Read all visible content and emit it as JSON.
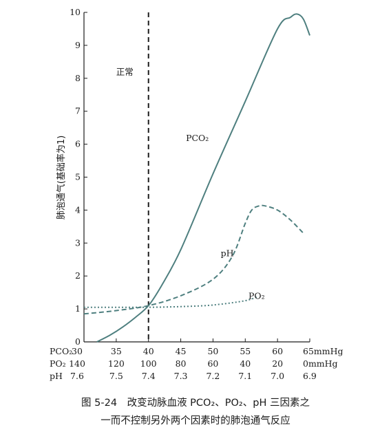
{
  "chart_data": {
    "type": "line",
    "ylabel": "肺泡通气(基础率为1)",
    "ylim": [
      0,
      10
    ],
    "y_ticks": [
      "0",
      "1",
      "2",
      "3",
      "4",
      "5",
      "6",
      "7",
      "8",
      "9",
      "10"
    ],
    "x_pco2_range": [
      30,
      65
    ],
    "x_rows": [
      {
        "label": "PCO₂",
        "ticks": [
          "30",
          "35",
          "40",
          "45",
          "50",
          "55",
          "60",
          "65mmHg"
        ]
      },
      {
        "label": "PO₂",
        "ticks": [
          "140",
          "120",
          "100",
          "80",
          "60",
          "40",
          "20",
          "0mmHg"
        ]
      },
      {
        "label": "pH",
        "ticks": [
          "7.6",
          "7.5",
          "7.4",
          "7.3",
          "7.2",
          "7.1",
          "7.0",
          "6.9"
        ]
      }
    ],
    "reference_line": {
      "x": 40,
      "label": "正常"
    },
    "series": [
      {
        "name": "PCO₂",
        "style": "solid",
        "color": "#4e7f7f",
        "x": [
          32,
          34,
          36,
          38,
          40,
          42,
          45,
          50,
          55,
          60,
          62,
          63,
          64,
          65
        ],
        "y": [
          0.0,
          0.2,
          0.45,
          0.75,
          1.1,
          1.7,
          2.8,
          5.1,
          7.3,
          9.5,
          9.85,
          9.95,
          9.8,
          9.3
        ]
      },
      {
        "name": "pH",
        "style": "dashed",
        "color": "#4e7f7f",
        "x": [
          30,
          35,
          40,
          45,
          50,
          53,
          55,
          56,
          57,
          58,
          60,
          62,
          64
        ],
        "y": [
          0.85,
          0.95,
          1.1,
          1.4,
          1.9,
          2.6,
          3.6,
          4.0,
          4.12,
          4.13,
          4.0,
          3.7,
          3.3
        ]
      },
      {
        "name": "PO₂",
        "style": "dotted",
        "color": "#4e7f7f",
        "x": [
          30,
          35,
          40,
          45,
          50,
          55,
          57
        ],
        "y": [
          1.05,
          1.05,
          1.05,
          1.07,
          1.12,
          1.25,
          1.38
        ]
      }
    ]
  },
  "caption": {
    "line1": "图 5-24　改变动脉血液 PCO₂、PO₂、pH 三因素之",
    "line2": "一而不控制另外两个因素时的肺泡通气反应"
  }
}
